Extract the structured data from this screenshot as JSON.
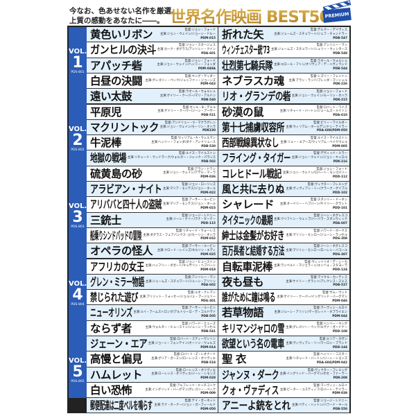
{
  "header": {
    "tagline1": "今なお、色あせない名作を厳選。",
    "tagline2": "上質の感動をあなたに――。",
    "title": "世界名作映画 BEST50",
    "badge": "PREMIUM"
  },
  "labels": {
    "director": "監督:",
    "cast": "主演:",
    "vol": "VOL."
  },
  "colors": {
    "accent": "#2a5cb8",
    "title_gold": "#c9972e",
    "row_alt": "#e2f0fb"
  },
  "volumes": [
    {
      "number": "1",
      "code": "PDS-801",
      "rows": [
        [
          {
            "title": "黄色いリボン",
            "director": "ジョン・フォード",
            "cast": "ジョン・ウェイン/ジョーン・ドルー",
            "code": "PDM-015"
          },
          {
            "title": "折れた矢",
            "director": "デルマー・デイヴィス",
            "cast": "ジェームズ・スチュワート/ジェフ・チャンドラー",
            "code": "PDB-547"
          }
        ],
        [
          {
            "title": "ガンヒルの決斗",
            "director": "ジョン・スタージェス",
            "cast": "カーク・ダグラス/アンソニー・クイン",
            "code": "PDA-601"
          },
          {
            "title": "ウィンチェスター銃'73",
            "director": "アンソニー・マン",
            "cast": "ジェームズ・スチュワート/シェリー・ウィンタース",
            "code": "PDB-548"
          }
        ],
        [
          {
            "title": "アパッチ砦",
            "director": "ジョン・フォード",
            "cast": "ジョン・ウェイン/ヘンリー・フォンダ",
            "code": "PDM-049A"
          },
          {
            "title": "壮烈第七騎兵隊",
            "director": "ラオール・ウォルシュ",
            "cast": "エロール・フリン/オリヴィア・デ・ハヴィランド",
            "code": "PDB-544"
          }
        ],
        [
          {
            "title": "白昼の決闘",
            "director": "キング・ヴィダー",
            "cast": "グレゴリー・ペック/ジェニファー・ジョーンズ",
            "code": "PDM-043"
          },
          {
            "title": "ネブラスカ魂",
            "director": "レズリー・フェントン",
            "cast": "アラン・ラッド/ブレンダ・マーシャル",
            "code": "PDK-226"
          }
        ],
        [
          {
            "title": "遠い太鼓",
            "director": "ラオール・ウォルシュ",
            "cast": "ゲイリー・クーパー/マリ・アルドン",
            "code": "PDB-540"
          },
          {
            "title": "リオ・グランデの砦",
            "director": "ジョン・フォード",
            "cast": "ジョン・ウェイン/モーリン・オハラ",
            "code": "PDK-215"
          }
        ]
      ]
    },
    {
      "number": "2",
      "code": "PDS-802",
      "rows": [
        [
          {
            "title": "平原児",
            "director": "セシル・B・デミル",
            "cast": "ゲイリー・クーパー/ジーン・アーサー",
            "code": "PDB-521"
          },
          {
            "title": "砂漠の鼠",
            "director": "ロバート・ワイズ",
            "cast": "リチャード・バートン/ジェームズ・メイソン",
            "code": "PDA-610"
          }
        ],
        [
          {
            "title": "マクリントック",
            "director": "アンドリュー・V・マクラグレン",
            "cast": "ジョン・ウェイン/モーリン・オハラ",
            "code": "PDK230"
          },
          {
            "title": "第十七捕虜収容所",
            "director": "ビリー・ワイルダー",
            "cast": "ウィリアム・ホールデン/ドン・テイラー",
            "code": "PDA-608|PDM-050"
          }
        ],
        [
          {
            "title": "牛泥棒",
            "director": "ウィリアム・A・ウェルマン",
            "cast": "ヘンリー・フォンダ/ダナ・アンドリュース",
            "code": "PDB-530"
          },
          {
            "title": "西部戦線異状なし",
            "director": "ルイス・マイルストン",
            "cast": "リュー・エアーズ/ウィリアム・ベイクウェル",
            "code": "PDM-005"
          }
        ],
        [
          {
            "title": "地獄の戦場",
            "director": "ルイス・マイルストン",
            "cast": "リチャード・ウィドマーク/ウォルター・ジャック・パランス",
            "code": "PDB-502"
          },
          {
            "title": "フライング・タイガー",
            "director": "デヴィッド・ミラー",
            "cast": "ジョン・ウェイン/ジョン・キャロル",
            "code": "PDK-216"
          }
        ],
        [
          {
            "title": "硫黄島の砂",
            "director": "アラン・ドワン",
            "cast": "ジョン・ウェイン/アデル・マーラ",
            "code": "PDM-036"
          },
          {
            "title": "コレヒドール戦記",
            "director": "ジョン・フォード",
            "cast": "ジョン・ウェイン/ロバート・モンゴメリー",
            "code": "PDD-112"
          }
        ]
      ]
    },
    {
      "number": "3",
      "code": "PDS-803",
      "rows": [
        [
          {
            "title": "アラビアン・ナイト",
            "director": "ジョン・ローリンズ",
            "cast": "マリア・モンテス/ジョン・ホール",
            "code": "PDM-022"
          },
          {
            "title": "風と共に去りぬ",
            "director": "ヴィクター・フレミング",
            "cast": "ヴィヴィアン・リー/クラーク・ゲイブル",
            "code": "PDD-102"
          }
        ],
        [
          {
            "title": "アリババと四十人の盗賊",
            "director": "アーサー・ルービン",
            "cast": "マリア・モンテス/ジョン・ホール",
            "code": "PDM-023"
          },
          {
            "title": "シャレード",
            "director": "スタンリー・ドーネン",
            "cast": "オードリー・ヘプバーン/ケイリー・グラント",
            "code": "PDD-101"
          }
        ],
        [
          {
            "title": "三銃士",
            "director": "ジョージ・シドニー",
            "cast": "ジーン・ケリー/ラナ・ターナー",
            "code": "PDD-115"
          },
          {
            "title": "タイタニックの最期",
            "director": "ジーン・ネグレスコ",
            "cast": "クリフトン・ウェッブ/バーバラ・スタンウィック",
            "code": "PDA-607"
          }
        ],
        [
          {
            "title": "船乗りシンドバッドの冒険",
            "director": "リチャード・ウォーレス",
            "cast": "ダグラス・フェアバンクス・Jr/モーリン・オハラ",
            "code": "PDM-032"
          },
          {
            "title": "紳士は金髪がお好き",
            "director": "ハワード・ホークス",
            "cast": "マリリン・モンロー/ジェーン・ラッセル",
            "code": "PDG-308"
          }
        ],
        [
          {
            "title": "オペラの怪人",
            "director": "アーサー・ルービン",
            "cast": "クロード・レインズ/ネルソン・エディ",
            "code": "PDM-025"
          },
          {
            "title": "百万長者と結婚する方法",
            "director": "ジーン・ネグレスコ",
            "cast": "マリリン・モンロー/ローレン・バコール",
            "code": "PDG-307"
          }
        ]
      ]
    },
    {
      "number": "4",
      "code": "PDS-804",
      "rows": [
        [
          {
            "title": "アフリカの女王",
            "director": "ジョン・ヒューストン",
            "cast": "ハンフリー・ボガート/キャサリン・ヘプバーン",
            "code": "PDM-018"
          },
          {
            "title": "自転車泥棒",
            "director": "ヴィットリオ・デ・シーカ",
            "cast": "ランベルト・マジョラーニ/エンツォ・スタヨーラ",
            "code": "PDD-124"
          }
        ],
        [
          {
            "title": "グレン・ミラー物語",
            "director": "アンソニー・マン",
            "cast": "ジェームズ・スチュワート/ジューン・アリソン",
            "code": "PDA-602"
          },
          {
            "title": "夜も昼も",
            "director": "マイケル・カーティス",
            "cast": "ケイリー・グラント/アレクシス・スミス",
            "code": "PDB-537"
          }
        ],
        [
          {
            "title": "禁じられた遊び",
            "director": "ルネ・クレマン",
            "cast": "ブリジット・フォッセー/ジョルジュ・プージュリー",
            "code": "PDG-301"
          },
          {
            "title": "誰がために鐘は鳴る",
            "director": "サム・ウッド",
            "cast": "ゲイリー・クーパー/イングリッド・バーグマン",
            "code": "PDM-046"
          }
        ],
        [
          {
            "title": "ニューオリンズ",
            "director": "アーサー・ルービン",
            "cast": "ルイ・アームストロング/アルトゥーロ・デ・コルドヴァ",
            "code": "PDB-505"
          },
          {
            "title": "若草物語",
            "director": "マーヴィン・ルロイ",
            "cast": "ジューン・アリソン/マーガレット・オブライエン",
            "code": "PDM-044"
          }
        ],
        [
          {
            "title": "ならず者",
            "director": "ハワード・ヒューズ",
            "cast": "ウォルター・ヒューストン/ジェーン・ラッセル",
            "code": "PDB-541"
          },
          {
            "title": "キリマンジャロの雪",
            "director": "ヘンリー・キング",
            "cast": "グレゴリー・ペック/エヴァ・ガードナー",
            "code": "PDD-108"
          }
        ]
      ]
    },
    {
      "number": "5",
      "code": "PDS-805",
      "rows": [
        [
          {
            "title": "ジェーン・エア",
            "director": "ロバート・スティーヴンソン",
            "cast": "ジョーン・フォンテイン/オーソン・ウェルズ",
            "code": "PDM-014"
          },
          {
            "title": "欲望という名の電車",
            "director": "エリア・カザン",
            "cast": "ヴィヴィアン・リー/マーロン・ブランド",
            "code": "PDD-144"
          }
        ],
        [
          {
            "title": "高慢と偏見",
            "director": "ロバート・Z・レオナード",
            "cast": "グリア・ガースン/ローレンス・オリヴィエ",
            "code": "PDB-518"
          },
          {
            "title": "聖 衣",
            "director": "ヘンリー・コスター",
            "cast": "リチャード・バートン/ジーン・シモンズ",
            "code": "PDA-604|PDM-042"
          }
        ],
        [
          {
            "title": "ハムレット",
            "director": "ローレンス・オリヴィエ",
            "cast": "ローレンス・オリヴィエ/ジーン・シモンズ",
            "code": "PDM-028"
          },
          {
            "title": "ジャンヌ・ダーク",
            "director": "ヴィクター・フレミング",
            "cast": "イングリッド・バーグマン/ホセ・ファーラー",
            "code": "PDK-208"
          }
        ],
        [
          {
            "title": "白い恐怖",
            "director": "アルフレッド・ヒッチコック",
            "cast": "イングリッド・バーグマン/グレゴリー・ペック",
            "code": "PDM-009"
          },
          {
            "title": "クォ・ヴァディス",
            "director": "マーヴィン・ルロイ",
            "cast": "ピーター・ユスティノフ/ロバート・テイラー",
            "code": "PDM-039"
          }
        ],
        [
          {
            "title": "郵便配達は二度ベルを鳴らす",
            "director": "テイ・ガーネット",
            "cast": "ラナ・ターナー/ジョン・ガーフィールド",
            "code": "PDM-050"
          },
          {
            "title": "アニーよ銃をとれ",
            "director": "ジョージ・シドニー",
            "cast": "ベティ・ハットン/ハワード・キール",
            "code": "PDB-550"
          }
        ]
      ]
    }
  ]
}
